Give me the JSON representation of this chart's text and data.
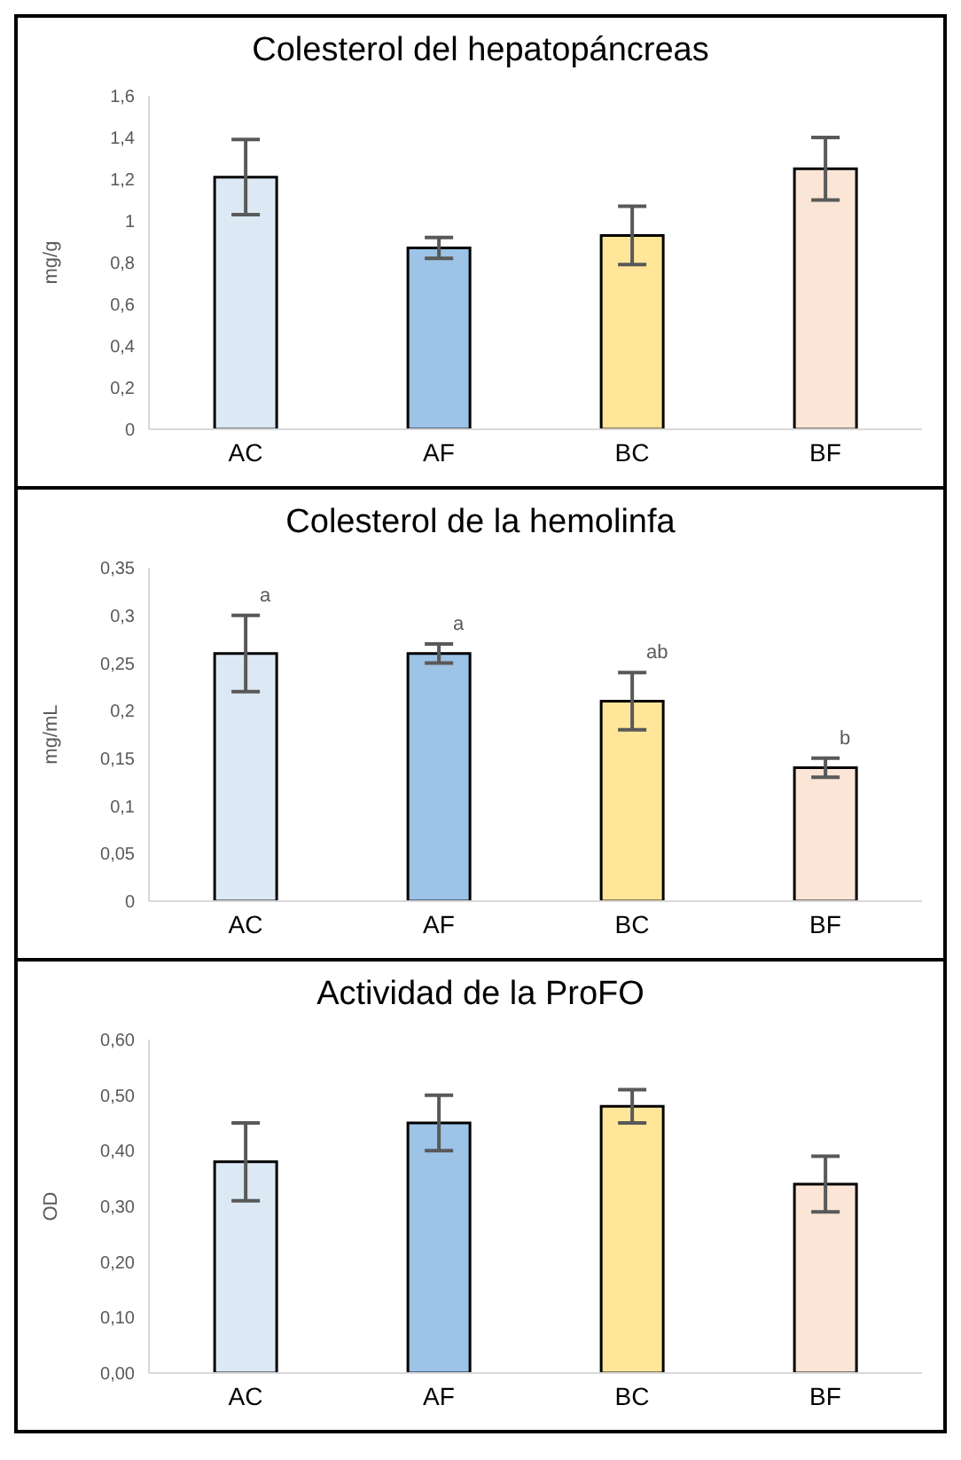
{
  "chart_data": [
    {
      "type": "bar",
      "title": "Colesterol del hepatopáncreas",
      "ylabel": "mg/g",
      "categories": [
        "AC",
        "AF",
        "BC",
        "BF"
      ],
      "values": [
        1.21,
        0.87,
        0.93,
        1.25
      ],
      "errors": [
        0.18,
        0.05,
        0.14,
        0.15
      ],
      "colors": [
        "#dce9f5",
        "#9dc3e6",
        "#ffe699",
        "#fbe5d6"
      ],
      "ylim": [
        0,
        1.6
      ],
      "yticks": [
        {
          "value": 0,
          "label": "0"
        },
        {
          "value": 0.2,
          "label": "0,2"
        },
        {
          "value": 0.4,
          "label": "0,4"
        },
        {
          "value": 0.6,
          "label": "0,6"
        },
        {
          "value": 0.8,
          "label": "0,8"
        },
        {
          "value": 1,
          "label": "1"
        },
        {
          "value": 1.2,
          "label": "1,2"
        },
        {
          "value": 1.4,
          "label": "1,4"
        },
        {
          "value": 1.6,
          "label": "1,6"
        }
      ]
    },
    {
      "type": "bar",
      "title": "Colesterol de la hemolinfa",
      "ylabel": "mg/mL",
      "categories": [
        "AC",
        "AF",
        "BC",
        "BF"
      ],
      "values": [
        0.26,
        0.26,
        0.21,
        0.14
      ],
      "errors": [
        0.04,
        0.01,
        0.03,
        0.01
      ],
      "colors": [
        "#dce9f5",
        "#9dc3e6",
        "#ffe699",
        "#fbe5d6"
      ],
      "ylim": [
        0,
        0.35
      ],
      "yticks": [
        {
          "value": 0,
          "label": "0"
        },
        {
          "value": 0.05,
          "label": "0,05"
        },
        {
          "value": 0.1,
          "label": "0,1"
        },
        {
          "value": 0.15,
          "label": "0,15"
        },
        {
          "value": 0.2,
          "label": "0,2"
        },
        {
          "value": 0.25,
          "label": "0,25"
        },
        {
          "value": 0.3,
          "label": "0,3"
        },
        {
          "value": 0.35,
          "label": "0,35"
        }
      ],
      "annotations": [
        {
          "text": "a",
          "x": "AC",
          "y": 0.3
        },
        {
          "text": "a",
          "x": "AF",
          "y": 0.27
        },
        {
          "text": "ab",
          "x": "BC",
          "y": 0.24
        },
        {
          "text": "b",
          "x": "BF",
          "y": 0.15
        }
      ]
    },
    {
      "type": "bar",
      "title": "Actividad de la ProFO",
      "ylabel": "OD",
      "categories": [
        "AC",
        "AF",
        "BC",
        "BF"
      ],
      "values": [
        0.38,
        0.45,
        0.48,
        0.34
      ],
      "errors": [
        0.07,
        0.05,
        0.03,
        0.05
      ],
      "colors": [
        "#dce9f5",
        "#9dc3e6",
        "#ffe699",
        "#fbe5d6"
      ],
      "ylim": [
        0,
        0.6
      ],
      "yticks": [
        {
          "value": 0,
          "label": "0,00"
        },
        {
          "value": 0.1,
          "label": "0,10"
        },
        {
          "value": 0.2,
          "label": "0,20"
        },
        {
          "value": 0.3,
          "label": "0,30"
        },
        {
          "value": 0.4,
          "label": "0,40"
        },
        {
          "value": 0.5,
          "label": "0,50"
        },
        {
          "value": 0.6,
          "label": "0,60"
        }
      ]
    }
  ]
}
